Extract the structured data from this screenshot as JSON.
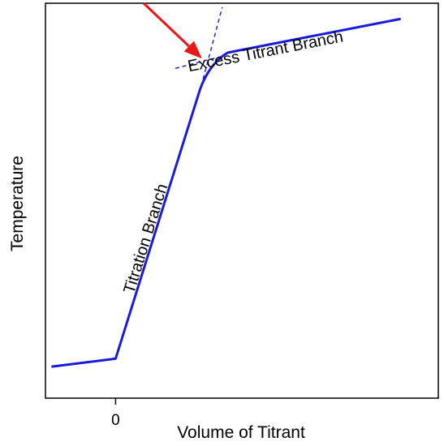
{
  "chart_data": {
    "type": "line",
    "title": "",
    "xlabel": "Volume of Titrant",
    "ylabel": "Temperature",
    "x_ticks": [
      {
        "value": 0,
        "label": "0"
      }
    ],
    "xlim": [
      -1,
      4.6
    ],
    "ylim": [
      0,
      10
    ],
    "grid": false,
    "series": [
      {
        "color": "#1a1adb",
        "points": [
          [
            -0.9,
            0.8
          ],
          [
            0,
            1.0
          ],
          [
            1.2,
            7.8
          ],
          [
            1.3,
            8.3
          ],
          [
            1.45,
            8.6
          ],
          [
            1.6,
            8.75
          ],
          [
            4.05,
            9.6
          ]
        ]
      }
    ],
    "extrapolation_lines": {
      "color": "#1a1adb",
      "style": "dashed",
      "lines": [
        {
          "from": [
            1.22,
            7.9
          ],
          "to": [
            1.52,
            9.9
          ]
        },
        {
          "from": [
            0.85,
            8.35
          ],
          "to": [
            1.5,
            8.65
          ]
        }
      ]
    },
    "annotations": [
      {
        "text": "Titration Branch",
        "at": [
          0.5,
          4.0
        ]
      },
      {
        "text": "Excess Titrant Branch",
        "at": [
          2.15,
          8.65
        ]
      }
    ],
    "arrow": {
      "color": "#e8171a",
      "from": [
        0.4,
        10.0
      ],
      "to": [
        1.23,
        8.6
      ]
    }
  }
}
